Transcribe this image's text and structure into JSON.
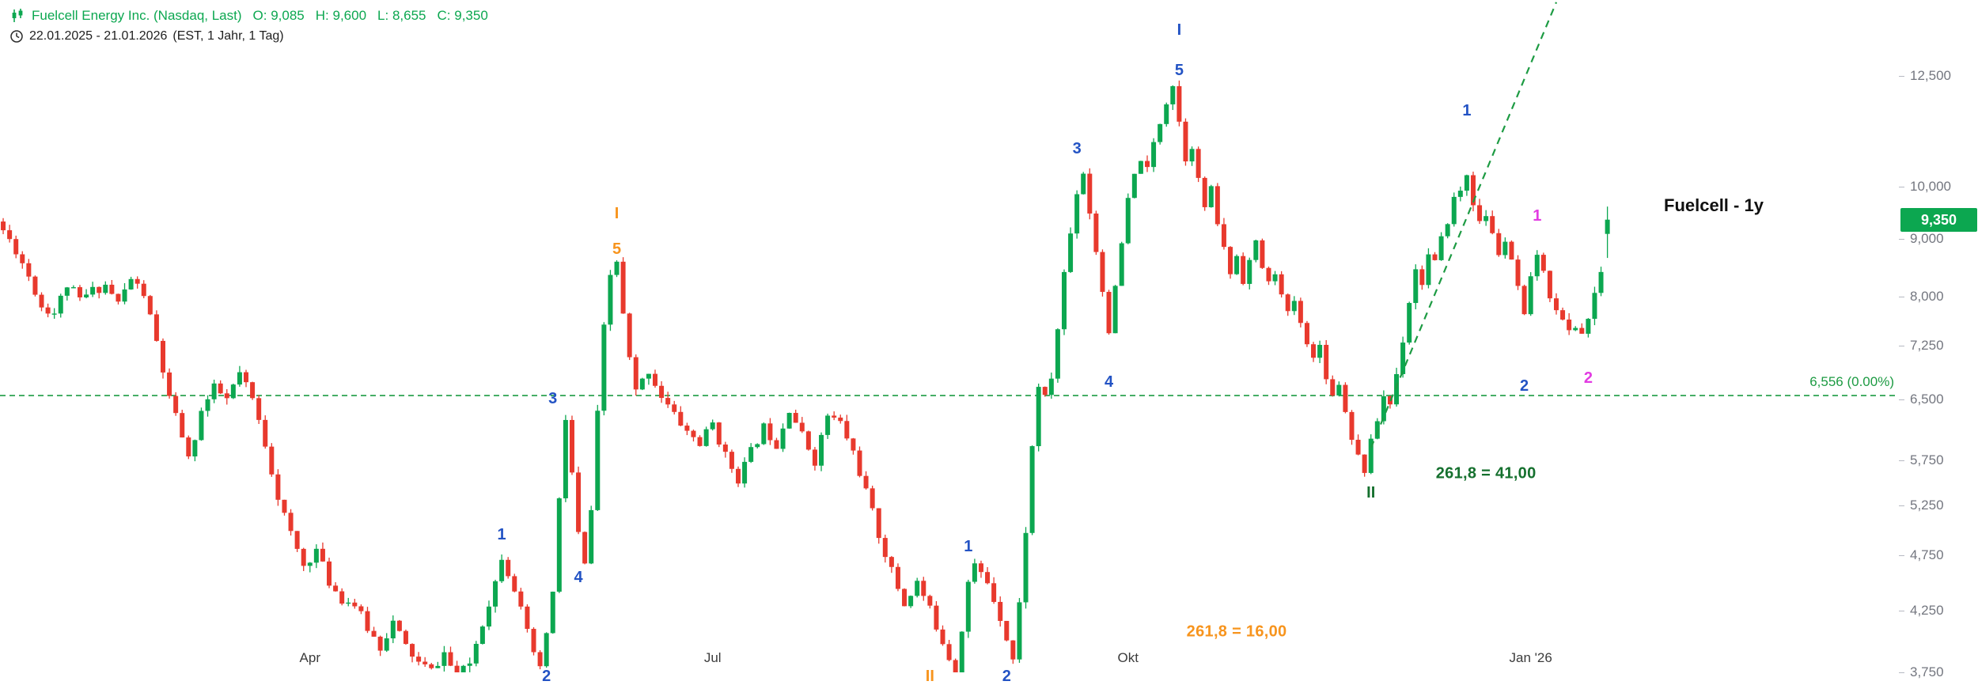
{
  "header": {
    "title": "Fuelcell Energy Inc. (Nasdaq, Last)",
    "ohlc": [
      {
        "label": "O:",
        "value": "9,085"
      },
      {
        "label": "H:",
        "value": "9,600"
      },
      {
        "label": "L:",
        "value": "8,655"
      },
      {
        "label": "C:",
        "value": "9,350"
      }
    ],
    "date_range": "22.01.2025 - 21.01.2026",
    "timeframe": "(EST, 1 Jahr, 1 Tag)"
  },
  "colors": {
    "up": "#0CA750",
    "down": "#E8392D",
    "header_green": "#0CA750",
    "blue": "#2353C4",
    "orange": "#F7941D",
    "magenta": "#E23BE2",
    "darkgreen": "#15702E",
    "line_green": "#1D9B43",
    "axis_text": "#73767F",
    "time_text": "#3C3C3C",
    "tag_bg": "#0CA750",
    "tag_text": "#FFFFFF"
  },
  "chart_data": {
    "type": "candlestick",
    "title": "Fuelcell - 1y",
    "symbol": "Fuelcell Energy Inc.",
    "exchange": "Nasdaq",
    "period": "22.01.2025 - 21.01.2026",
    "interval": "1 Tag",
    "scale": "log",
    "last_price_label": "9,350",
    "last_ohlc": {
      "open": 9085,
      "high": 9600,
      "low": 8655,
      "close": 9350
    },
    "price_line": {
      "value": 6556,
      "label": "6,556 (0.00%)"
    },
    "y_axis": {
      "top_price": 14566,
      "bottom_price": 3750,
      "ticks": [
        {
          "label": "12,500",
          "value": 12500
        },
        {
          "label": "10,000",
          "value": 10000
        },
        {
          "label": "9,000",
          "value": 9000
        },
        {
          "label": "8,000",
          "value": 8000
        },
        {
          "label": "7,250",
          "value": 7250
        },
        {
          "label": "6,500",
          "value": 6500
        },
        {
          "label": "5,750",
          "value": 5750
        },
        {
          "label": "5,250",
          "value": 5250
        },
        {
          "label": "4,750",
          "value": 4750
        },
        {
          "label": "4,250",
          "value": 4250
        },
        {
          "label": "3,750",
          "value": 3750
        }
      ]
    },
    "x_axis": {
      "total_days": 252,
      "ticks": [
        {
          "label": "Apr",
          "day": 48
        },
        {
          "label": "Jul",
          "day": 111
        },
        {
          "label": "Okt",
          "day": 176
        },
        {
          "label": "Jan '26",
          "day": 239
        }
      ]
    },
    "noise_seed": 11,
    "anchors": [
      [
        0,
        9150
      ],
      [
        2,
        8800
      ],
      [
        4,
        8350
      ],
      [
        6,
        7850
      ],
      [
        8,
        7750
      ],
      [
        10,
        8200
      ],
      [
        12,
        7950
      ],
      [
        14,
        8100
      ],
      [
        16,
        8200
      ],
      [
        18,
        7900
      ],
      [
        20,
        8300
      ],
      [
        22,
        8050
      ],
      [
        24,
        7300
      ],
      [
        26,
        6500
      ],
      [
        28,
        6050
      ],
      [
        29,
        5750
      ],
      [
        31,
        6350
      ],
      [
        33,
        6650
      ],
      [
        35,
        6500
      ],
      [
        37,
        6850
      ],
      [
        39,
        6500
      ],
      [
        41,
        5950
      ],
      [
        43,
        5350
      ],
      [
        45,
        4950
      ],
      [
        47,
        4650
      ],
      [
        49,
        4800
      ],
      [
        51,
        4500
      ],
      [
        53,
        4350
      ],
      [
        55,
        4300
      ],
      [
        57,
        4100
      ],
      [
        59,
        3950
      ],
      [
        61,
        4150
      ],
      [
        63,
        3950
      ],
      [
        65,
        3820
      ],
      [
        67,
        3760
      ],
      [
        69,
        3900
      ],
      [
        71,
        3700
      ],
      [
        73,
        3820
      ],
      [
        75,
        4150
      ],
      [
        77,
        4500
      ],
      [
        78,
        4750
      ],
      [
        80,
        4450
      ],
      [
        82,
        4050
      ],
      [
        84,
        3760
      ],
      [
        86,
        4400
      ],
      [
        87,
        5300
      ],
      [
        88,
        6250
      ],
      [
        89,
        5600
      ],
      [
        90,
        4950
      ],
      [
        91,
        4650
      ],
      [
        92,
        5200
      ],
      [
        93,
        6300
      ],
      [
        94,
        7500
      ],
      [
        95,
        8350
      ],
      [
        96,
        8600
      ],
      [
        97,
        7700
      ],
      [
        98,
        7050
      ],
      [
        99,
        6600
      ],
      [
        101,
        6900
      ],
      [
        103,
        6550
      ],
      [
        105,
        6300
      ],
      [
        107,
        6100
      ],
      [
        109,
        5950
      ],
      [
        111,
        6200
      ],
      [
        113,
        5800
      ],
      [
        115,
        5550
      ],
      [
        117,
        5850
      ],
      [
        119,
        6150
      ],
      [
        121,
        5950
      ],
      [
        123,
        6400
      ],
      [
        125,
        6050
      ],
      [
        127,
        5750
      ],
      [
        129,
        6300
      ],
      [
        131,
        6200
      ],
      [
        133,
        5850
      ],
      [
        135,
        5400
      ],
      [
        137,
        4950
      ],
      [
        139,
        4600
      ],
      [
        141,
        4300
      ],
      [
        143,
        4500
      ],
      [
        145,
        4250
      ],
      [
        147,
        4000
      ],
      [
        149,
        3750
      ],
      [
        151,
        4500
      ],
      [
        152,
        4650
      ],
      [
        154,
        4500
      ],
      [
        156,
        4200
      ],
      [
        158,
        3850
      ],
      [
        159,
        4300
      ],
      [
        160,
        5000
      ],
      [
        161,
        5900
      ],
      [
        162,
        6700
      ],
      [
        163,
        6500
      ],
      [
        164,
        6800
      ],
      [
        165,
        7500
      ],
      [
        166,
        8400
      ],
      [
        167,
        9100
      ],
      [
        168,
        9900
      ],
      [
        169,
        10300
      ],
      [
        170,
        9500
      ],
      [
        171,
        8800
      ],
      [
        172,
        8100
      ],
      [
        173,
        7500
      ],
      [
        174,
        8100
      ],
      [
        175,
        8900
      ],
      [
        176,
        9700
      ],
      [
        177,
        10200
      ],
      [
        178,
        10600
      ],
      [
        179,
        10300
      ],
      [
        180,
        10900
      ],
      [
        181,
        11400
      ],
      [
        182,
        11900
      ],
      [
        183,
        12300
      ],
      [
        184,
        11400
      ],
      [
        185,
        10600
      ],
      [
        186,
        10900
      ],
      [
        187,
        10100
      ],
      [
        188,
        9600
      ],
      [
        189,
        9900
      ],
      [
        190,
        9300
      ],
      [
        191,
        8800
      ],
      [
        192,
        8400
      ],
      [
        193,
        8700
      ],
      [
        194,
        8300
      ],
      [
        195,
        8600
      ],
      [
        196,
        8900
      ],
      [
        197,
        8500
      ],
      [
        198,
        8200
      ],
      [
        199,
        8450
      ],
      [
        200,
        8000
      ],
      [
        201,
        7700
      ],
      [
        202,
        7950
      ],
      [
        203,
        7550
      ],
      [
        204,
        7350
      ],
      [
        205,
        7050
      ],
      [
        206,
        7250
      ],
      [
        207,
        6850
      ],
      [
        208,
        6550
      ],
      [
        209,
        6750
      ],
      [
        210,
        6350
      ],
      [
        211,
        6050
      ],
      [
        212,
        5800
      ],
      [
        213,
        5650
      ],
      [
        214,
        5950
      ],
      [
        215,
        6250
      ],
      [
        216,
        6550
      ],
      [
        217,
        6450
      ],
      [
        218,
        6850
      ],
      [
        219,
        7350
      ],
      [
        220,
        7950
      ],
      [
        221,
        8450
      ],
      [
        222,
        8250
      ],
      [
        223,
        8700
      ],
      [
        224,
        8550
      ],
      [
        225,
        8950
      ],
      [
        226,
        9350
      ],
      [
        227,
        9750
      ],
      [
        228,
        9900
      ],
      [
        229,
        10250
      ],
      [
        230,
        9700
      ],
      [
        231,
        9250
      ],
      [
        232,
        9450
      ],
      [
        233,
        9050
      ],
      [
        234,
        8750
      ],
      [
        235,
        8950
      ],
      [
        236,
        8550
      ],
      [
        237,
        8150
      ],
      [
        238,
        7650
      ],
      [
        239,
        8250
      ],
      [
        240,
        8750
      ],
      [
        241,
        8350
      ],
      [
        242,
        8050
      ],
      [
        243,
        7850
      ],
      [
        244,
        7600
      ],
      [
        245,
        7450
      ],
      [
        246,
        7550
      ],
      [
        247,
        7450
      ],
      [
        248,
        7650
      ],
      [
        249,
        8000
      ],
      [
        250,
        8450
      ],
      [
        251,
        9350
      ]
    ],
    "wave_labels": [
      {
        "text": "1",
        "color": "blue",
        "day": 78,
        "price": 4950
      },
      {
        "text": "2",
        "color": "blue",
        "day": 85,
        "price": 3720
      },
      {
        "text": "3",
        "color": "blue",
        "day": 86,
        "price": 6520
      },
      {
        "text": "4",
        "color": "blue",
        "day": 90,
        "price": 4540
      },
      {
        "text": "5",
        "color": "orange",
        "day": 96,
        "price": 8810
      },
      {
        "text": "I",
        "color": "orange",
        "day": 96,
        "price": 9470
      },
      {
        "text": "II",
        "color": "orange",
        "day": 145,
        "price": 3720
      },
      {
        "text": "1",
        "color": "blue",
        "day": 151,
        "price": 4830
      },
      {
        "text": "2",
        "color": "blue",
        "day": 157,
        "price": 3720
      },
      {
        "text": "3",
        "color": "blue",
        "day": 168,
        "price": 10790
      },
      {
        "text": "4",
        "color": "blue",
        "day": 173,
        "price": 6740
      },
      {
        "text": "5",
        "color": "blue",
        "day": 184,
        "price": 12630
      },
      {
        "text": "I",
        "color": "blue",
        "day": 184,
        "price": 13700
      },
      {
        "text": "II",
        "color": "darkgreen",
        "day": 214,
        "price": 5390
      },
      {
        "text": "1",
        "color": "blue",
        "day": 229,
        "price": 11640
      },
      {
        "text": "2",
        "color": "blue",
        "day": 238,
        "price": 6680
      },
      {
        "text": "1",
        "color": "magenta",
        "day": 240,
        "price": 9420
      },
      {
        "text": "2",
        "color": "magenta",
        "day": 248,
        "price": 6790
      }
    ],
    "annotations": [
      {
        "text": "261,8 = 41,00",
        "color": "darkgreen",
        "day": 232,
        "price": 5600
      },
      {
        "text": "261,8 = 16,00",
        "color": "orange",
        "day": 193,
        "price": 4070
      }
    ],
    "trendline": {
      "day1": 214,
      "price1": 5900,
      "day2": 243,
      "price2": 14500
    }
  }
}
